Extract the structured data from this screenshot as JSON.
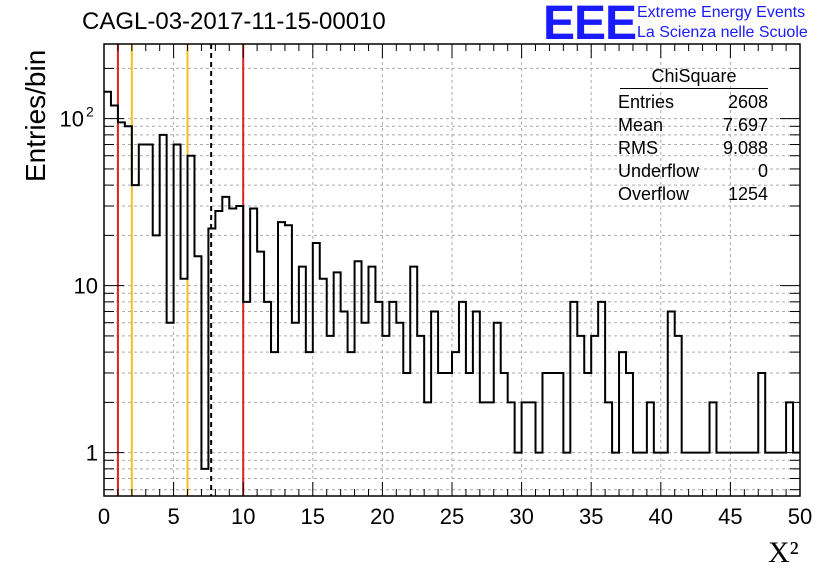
{
  "header": {
    "title": "CAGL-03-2017-11-15-00010",
    "logo_text": "EEE",
    "logo_line1": "Extreme Energy Events",
    "logo_line2": "La Scienza nelle Scuole"
  },
  "stats": {
    "title": "ChiSquare",
    "rows": [
      {
        "label": "Entries",
        "value": "2608"
      },
      {
        "label": "Mean",
        "value": "7.697"
      },
      {
        "label": "RMS",
        "value": "9.088"
      },
      {
        "label": "Underflow",
        "value": "0"
      },
      {
        "label": "Overflow",
        "value": "1254"
      }
    ]
  },
  "chart_data": {
    "type": "histogram",
    "title": "CAGL-03-2017-11-15-00010",
    "xlabel": "X²",
    "ylabel": "Entries/bin",
    "xlim": [
      0,
      50
    ],
    "ylim_log": [
      0.55,
      280
    ],
    "log_y": true,
    "grid": true,
    "bin_width": 0.5,
    "x_ticks": [
      "0",
      "5",
      "10",
      "15",
      "20",
      "25",
      "30",
      "35",
      "40",
      "45",
      "50"
    ],
    "y_ticks": [
      {
        "value": 1,
        "label": "1"
      },
      {
        "value": 10,
        "label": "10"
      },
      {
        "value": 100,
        "label": "10",
        "sup": "2"
      }
    ],
    "bin_counts": [
      145,
      120,
      95,
      90,
      40,
      70,
      70,
      20,
      80,
      6,
      70,
      11,
      60,
      15,
      0.8,
      22,
      28,
      34,
      29,
      30,
      8,
      29,
      16,
      8,
      4,
      24,
      23,
      6,
      13,
      4,
      18,
      11,
      5,
      12,
      7,
      4,
      14,
      6,
      13,
      8,
      5,
      8,
      6,
      3,
      13,
      5,
      2,
      7,
      3,
      3,
      4,
      8,
      3,
      7,
      2,
      2,
      6,
      3,
      2,
      1,
      2,
      2,
      1,
      3,
      3,
      3,
      1,
      8,
      5,
      3,
      5,
      8,
      2,
      1,
      4,
      3,
      1,
      1,
      2,
      1,
      1,
      7,
      5,
      1,
      1,
      1,
      1,
      2,
      1,
      1,
      1,
      1,
      1,
      1,
      3,
      1,
      1,
      1,
      2,
      1
    ],
    "series_color": "#000000",
    "reference_lines": [
      {
        "x": 1,
        "color": "#dd2222",
        "style": "solid"
      },
      {
        "x": 2,
        "color": "#f0c020",
        "style": "solid"
      },
      {
        "x": 6,
        "color": "#f0c020",
        "style": "solid"
      },
      {
        "x": 7.697,
        "color": "#000000",
        "style": "dashed"
      },
      {
        "x": 10,
        "color": "#dd2222",
        "style": "solid"
      }
    ]
  }
}
